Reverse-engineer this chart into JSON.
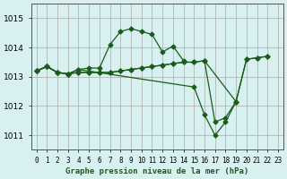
{
  "title": "Graphe pression niveau de la mer (hPa)",
  "xlabel_ticks": [
    "0",
    "1",
    "2",
    "3",
    "4",
    "5",
    "6",
    "7",
    "8",
    "9",
    "10",
    "11",
    "12",
    "13",
    "14",
    "15",
    "16",
    "17",
    "18",
    "19",
    "20",
    "21",
    "22",
    "23"
  ],
  "yticks": [
    1011,
    1012,
    1013,
    1014,
    1015
  ],
  "ylim": [
    1010.5,
    1015.5
  ],
  "xlim": [
    -0.5,
    23.5
  ],
  "bg_color": "#d8f0f0",
  "grid_color": "#aaaaaa",
  "line_color": "#1a5c1a",
  "series": [
    [
      1013.2,
      1013.35,
      1013.15,
      1013.15,
      1013.3,
      1013.3,
      1013.3,
      1014.1,
      1014.55,
      1014.65,
      1014.55,
      1014.45,
      1013.85,
      1014.05,
      1013.55,
      null,
      null,
      null,
      null,
      null,
      null,
      null,
      null,
      null
    ],
    [
      1013.2,
      1013.35,
      1013.15,
      1013.15,
      1013.3,
      null,
      null,
      null,
      null,
      null,
      null,
      null,
      null,
      null,
      null,
      1012.65,
      1011.7,
      1011.0,
      1011.4,
      1012.15,
      null,
      null,
      null,
      null
    ],
    [
      1013.2,
      1013.35,
      1013.15,
      1013.15,
      1013.15,
      1013.15,
      1013.15,
      1013.15,
      1013.15,
      1013.15,
      1013.2,
      1013.3,
      1013.35,
      1013.4,
      1013.45,
      1013.5,
      1013.5,
      1011.45,
      1011.6,
      1012.15,
      1013.6,
      1013.65,
      1013.7,
      null
    ],
    [
      1013.2,
      1013.35,
      1013.15,
      1013.15,
      1013.15,
      1013.15,
      1013.15,
      1013.15,
      1013.15,
      1013.15,
      1013.2,
      1013.3,
      1013.35,
      1013.4,
      1013.45,
      1013.5,
      1013.5,
      1013.55,
      1013.55,
      1012.15,
      1013.6,
      1013.65,
      1013.7,
      null
    ]
  ]
}
